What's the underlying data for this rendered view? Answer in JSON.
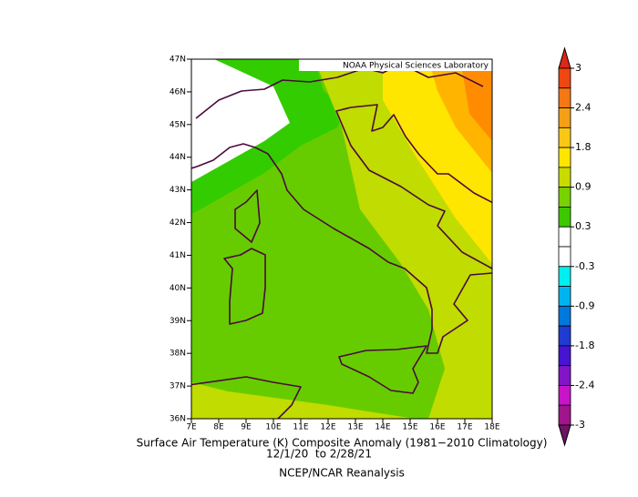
{
  "map": {
    "credit": "NOAA Physical Sciences Laboratory",
    "lat_ticks": [
      "47N",
      "46N",
      "45N",
      "44N",
      "43N",
      "42N",
      "41N",
      "40N",
      "39N",
      "38N",
      "37N",
      "36N"
    ],
    "lon_ticks": [
      "7E",
      "8E",
      "9E",
      "10E",
      "11E",
      "12E",
      "13E",
      "14E",
      "15E",
      "16E",
      "17E",
      "18E"
    ]
  },
  "caption": {
    "line1": "Surface Air Temperature (K) Composite Anomaly (1981−2010 Climatology)",
    "line2": "12/1/20  to 2/28/21",
    "line3": "NCEP/NCAR Reanalysis"
  },
  "colorbar": {
    "ticks": [
      3,
      2.4,
      1.8,
      0.9,
      0.3,
      -0.3,
      -0.9,
      -1.8,
      -2.4,
      -3
    ],
    "colors": [
      "#dc2814",
      "#f0460f",
      "#f57814",
      "#f5a014",
      "#fac814",
      "#ffe600",
      "#c8dc00",
      "#78d200",
      "#3cc800",
      "#ffffff",
      "#ffffff",
      "#00f0f0",
      "#00b4f0",
      "#0078dc",
      "#1e3cd2",
      "#4614d2",
      "#8214c8",
      "#c814c8",
      "#a0148c",
      "#6e1464"
    ]
  }
}
